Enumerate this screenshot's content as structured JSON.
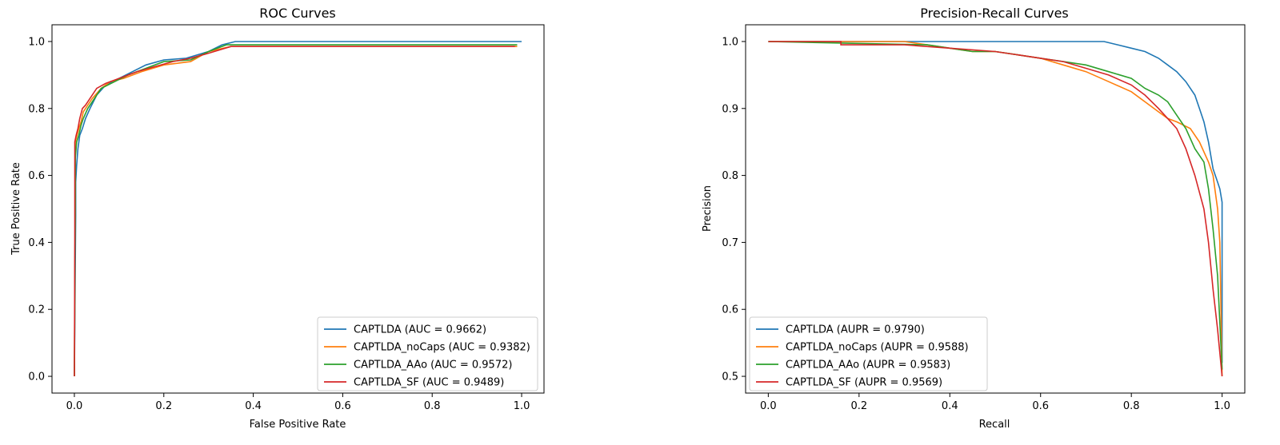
{
  "colors": {
    "blue": "#1f77b4",
    "orange": "#ff7f0e",
    "green": "#2ca02c",
    "red": "#d62728"
  },
  "chart_data": [
    {
      "type": "line",
      "title": "ROC Curves",
      "xlabel": "False Positive Rate",
      "ylabel": "True Positive Rate",
      "xlim": [
        -0.05,
        1.05
      ],
      "ylim": [
        -0.05,
        1.05
      ],
      "xticks": [
        0.0,
        0.2,
        0.4,
        0.6,
        0.8,
        1.0
      ],
      "xtick_labels": [
        "0.0",
        "0.2",
        "0.4",
        "0.6",
        "0.8",
        "1.0"
      ],
      "yticks": [
        0.0,
        0.2,
        0.4,
        0.6,
        0.8,
        1.0
      ],
      "ytick_labels": [
        "0.0",
        "0.2",
        "0.4",
        "0.6",
        "0.8",
        "1.0"
      ],
      "grid": false,
      "legend": "lower-right",
      "series": [
        {
          "name": "CAPTLDA (AUC = 0.9662)",
          "color": "#1f77b4",
          "x": [
            0,
            0.003,
            0.003,
            0.005,
            0.008,
            0.012,
            0.018,
            0.025,
            0.035,
            0.05,
            0.07,
            0.1,
            0.13,
            0.16,
            0.2,
            0.25,
            0.3,
            0.33,
            0.36,
            0.5,
            0.7,
            0.9,
            1.0
          ],
          "y": [
            0,
            0.48,
            0.58,
            0.63,
            0.68,
            0.72,
            0.74,
            0.77,
            0.8,
            0.84,
            0.87,
            0.89,
            0.91,
            0.93,
            0.945,
            0.95,
            0.97,
            0.99,
            1.0,
            1.0,
            1.0,
            1.0,
            1.0
          ]
        },
        {
          "name": "CAPTLDA_noCaps (AUC = 0.9382)",
          "color": "#ff7f0e",
          "x": [
            0,
            0.002,
            0.002,
            0.006,
            0.01,
            0.015,
            0.02,
            0.03,
            0.04,
            0.06,
            0.08,
            0.11,
            0.15,
            0.2,
            0.26,
            0.3,
            0.35,
            0.5,
            0.7,
            0.9,
            0.99
          ],
          "y": [
            0,
            0.6,
            0.7,
            0.72,
            0.74,
            0.76,
            0.79,
            0.81,
            0.83,
            0.86,
            0.88,
            0.89,
            0.91,
            0.93,
            0.94,
            0.97,
            0.985,
            0.985,
            0.985,
            0.985,
            0.985
          ]
        },
        {
          "name": "CAPTLDA_AAo (AUC = 0.9572)",
          "color": "#2ca02c",
          "x": [
            0,
            0.002,
            0.002,
            0.005,
            0.01,
            0.015,
            0.02,
            0.03,
            0.045,
            0.06,
            0.09,
            0.12,
            0.16,
            0.2,
            0.26,
            0.3,
            0.34,
            0.5,
            0.7,
            0.9,
            0.99
          ],
          "y": [
            0,
            0.55,
            0.65,
            0.7,
            0.72,
            0.75,
            0.77,
            0.8,
            0.83,
            0.86,
            0.88,
            0.9,
            0.92,
            0.94,
            0.945,
            0.97,
            0.99,
            0.99,
            0.99,
            0.99,
            0.99
          ]
        },
        {
          "name": "CAPTLDA_SF (AUC = 0.9489)",
          "color": "#d62728",
          "x": [
            0,
            0.001,
            0.001,
            0.004,
            0.008,
            0.012,
            0.018,
            0.025,
            0.035,
            0.05,
            0.07,
            0.1,
            0.14,
            0.18,
            0.22,
            0.26,
            0.3,
            0.35,
            0.5,
            0.7,
            0.9,
            0.985
          ],
          "y": [
            0,
            0.4,
            0.7,
            0.72,
            0.74,
            0.77,
            0.8,
            0.81,
            0.83,
            0.86,
            0.875,
            0.89,
            0.91,
            0.925,
            0.94,
            0.95,
            0.965,
            0.985,
            0.985,
            0.985,
            0.985,
            0.985
          ]
        }
      ]
    },
    {
      "type": "line",
      "title": "Precision-Recall Curves",
      "xlabel": "Recall",
      "ylabel": "Precision",
      "xlim": [
        -0.05,
        1.05
      ],
      "ylim": [
        0.475,
        1.025
      ],
      "xticks": [
        0.0,
        0.2,
        0.4,
        0.6,
        0.8,
        1.0
      ],
      "xtick_labels": [
        "0.0",
        "0.2",
        "0.4",
        "0.6",
        "0.8",
        "1.0"
      ],
      "yticks": [
        0.5,
        0.6,
        0.7,
        0.8,
        0.9,
        1.0
      ],
      "ytick_labels": [
        "0.5",
        "0.6",
        "0.7",
        "0.8",
        "0.9",
        "1.0"
      ],
      "grid": false,
      "legend": "lower-left",
      "series": [
        {
          "name": "CAPTLDA (AUPR = 0.9790)",
          "color": "#1f77b4",
          "x": [
            0,
            0.3,
            0.5,
            0.6,
            0.7,
            0.74,
            0.77,
            0.8,
            0.83,
            0.86,
            0.88,
            0.9,
            0.92,
            0.94,
            0.95,
            0.96,
            0.97,
            0.98,
            0.99,
            0.995,
            1.0,
            1.0,
            1.0
          ],
          "y": [
            1.0,
            1.0,
            1.0,
            1.0,
            1.0,
            1.0,
            0.995,
            0.99,
            0.985,
            0.975,
            0.965,
            0.955,
            0.94,
            0.92,
            0.9,
            0.88,
            0.85,
            0.81,
            0.79,
            0.78,
            0.76,
            0.7,
            0.52
          ]
        },
        {
          "name": "CAPTLDA_noCaps (AUPR = 0.9588)",
          "color": "#ff7f0e",
          "x": [
            0,
            0.3,
            0.35,
            0.4,
            0.45,
            0.5,
            0.55,
            0.6,
            0.65,
            0.7,
            0.75,
            0.8,
            0.83,
            0.86,
            0.88,
            0.9,
            0.93,
            0.95,
            0.97,
            0.98,
            0.99,
            0.995,
            1.0
          ],
          "y": [
            1.0,
            1.0,
            0.995,
            0.99,
            0.985,
            0.985,
            0.98,
            0.975,
            0.965,
            0.955,
            0.94,
            0.925,
            0.91,
            0.895,
            0.885,
            0.88,
            0.87,
            0.85,
            0.82,
            0.8,
            0.75,
            0.7,
            0.5
          ]
        },
        {
          "name": "CAPTLDA_AAo (AUPR = 0.9583)",
          "color": "#2ca02c",
          "x": [
            0,
            0.35,
            0.4,
            0.45,
            0.5,
            0.55,
            0.6,
            0.65,
            0.7,
            0.75,
            0.8,
            0.83,
            0.86,
            0.88,
            0.9,
            0.92,
            0.94,
            0.96,
            0.97,
            0.98,
            0.99,
            0.995,
            1.0
          ],
          "y": [
            1.0,
            0.995,
            0.99,
            0.985,
            0.985,
            0.98,
            0.975,
            0.97,
            0.965,
            0.955,
            0.945,
            0.93,
            0.92,
            0.91,
            0.89,
            0.87,
            0.84,
            0.82,
            0.78,
            0.72,
            0.65,
            0.58,
            0.51
          ]
        },
        {
          "name": "CAPTLDA_SF (AUPR = 0.9569)",
          "color": "#d62728",
          "x": [
            0,
            0.15,
            0.16,
            0.16,
            0.3,
            0.4,
            0.5,
            0.6,
            0.65,
            0.7,
            0.75,
            0.8,
            0.83,
            0.86,
            0.88,
            0.9,
            0.92,
            0.94,
            0.96,
            0.97,
            0.98,
            0.99,
            1.0
          ],
          "y": [
            1.0,
            1.0,
            1.0,
            0.995,
            0.995,
            0.99,
            0.985,
            0.975,
            0.97,
            0.96,
            0.95,
            0.935,
            0.92,
            0.9,
            0.885,
            0.87,
            0.84,
            0.8,
            0.75,
            0.7,
            0.63,
            0.57,
            0.5
          ]
        }
      ]
    }
  ]
}
